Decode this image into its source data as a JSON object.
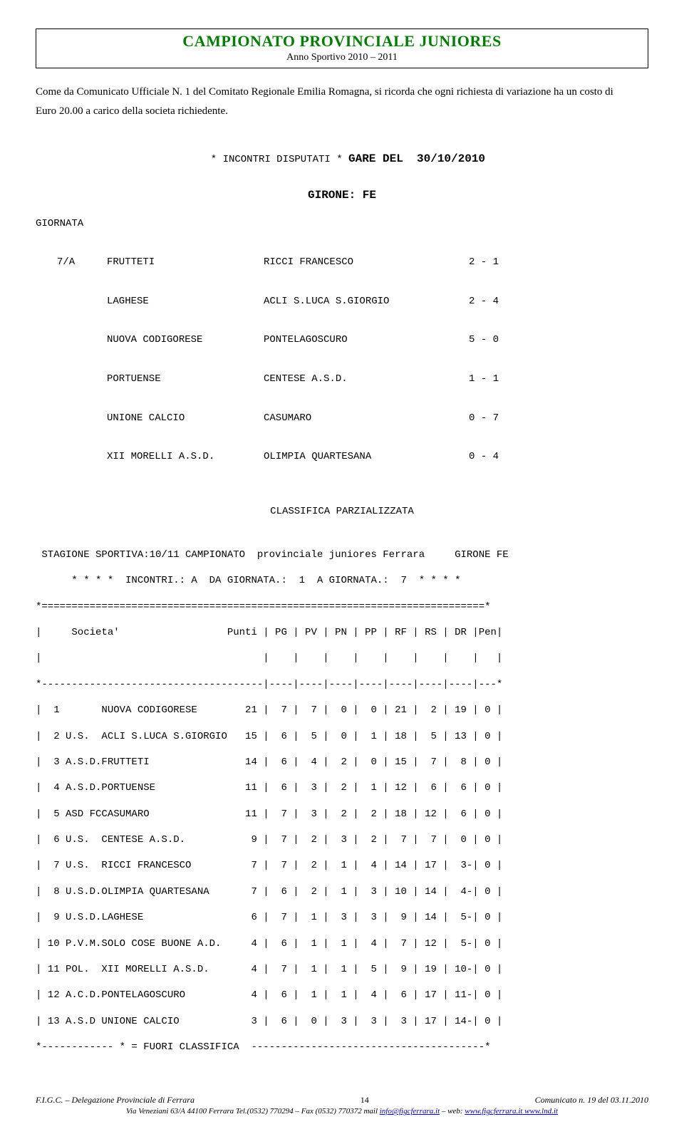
{
  "header": {
    "title": "CAMPIONATO PROVINCIALE JUNIORES",
    "subtitle": "Anno Sportivo 2010 – 2011"
  },
  "intro": {
    "line1": "Come da Comunicato Ufficiale N. 1 del Comitato Regionale Emilia Romagna, si ricorda che ogni richiesta di variazione ha un costo di",
    "line2": "Euro 20.00 a carico della societa richiedente."
  },
  "gare": {
    "prefix": "* INCONTRI DISPUTATI * ",
    "label": "GARE DEL",
    "date": "  30/10/2010"
  },
  "girone": "GIRONE: FE",
  "giornata_label": "GIORNATA",
  "matches": [
    {
      "rnd": "7/A",
      "home": "FRUTTETI",
      "away": "RICCI FRANCESCO",
      "score": "2 - 1"
    },
    {
      "rnd": "",
      "home": "LAGHESE",
      "away": "ACLI S.LUCA S.GIORGIO",
      "score": "2 - 4"
    },
    {
      "rnd": "",
      "home": "NUOVA CODIGORESE",
      "away": "PONTELAGOSCURO",
      "score": "5 - 0"
    },
    {
      "rnd": "",
      "home": "PORTUENSE",
      "away": "CENTESE A.S.D.",
      "score": "1 - 1"
    },
    {
      "rnd": "",
      "home": "UNIONE CALCIO",
      "away": "CASUMARO",
      "score": "0 - 7"
    },
    {
      "rnd": "",
      "home": "XII MORELLI A.S.D.",
      "away": "OLIMPIA QUARTESANA",
      "score": "0 - 4"
    }
  ],
  "classifica_title": "CLASSIFICA PARZIALIZZATA",
  "standings": {
    "line1": " STAGIONE SPORTIVA:10/11 CAMPIONATO  provinciale juniores Ferrara     GIRONE FE",
    "line2": "      * * * *  INCONTRI.: A  DA GIORNATA.:  1  A GIORNATA.:  7  * * * *",
    "sep_eq": "*==========================================================================*",
    "header": "|     Societa'                  Punti | PG | PV | PN | PP | RF | RS | DR |Pen|",
    "blank": "|                                     |    |    |    |    |    |    |    |   |",
    "sep_da": "*-------------------------------------|----|----|----|----|----|----|----|---*",
    "rows": [
      "|  1       NUOVA CODIGORESE        21 |  7 |  7 |  0 |  0 | 21 |  2 | 19 | 0 |",
      "|  2 U.S.  ACLI S.LUCA S.GIORGIO   15 |  6 |  5 |  0 |  1 | 18 |  5 | 13 | 0 |",
      "|  3 A.S.D.FRUTTETI                14 |  6 |  4 |  2 |  0 | 15 |  7 |  8 | 0 |",
      "|  4 A.S.D.PORTUENSE               11 |  6 |  3 |  2 |  1 | 12 |  6 |  6 | 0 |",
      "|  5 ASD FCCASUMARO                11 |  7 |  3 |  2 |  2 | 18 | 12 |  6 | 0 |",
      "|  6 U.S.  CENTESE A.S.D.           9 |  7 |  2 |  3 |  2 |  7 |  7 |  0 | 0 |",
      "|  7 U.S.  RICCI FRANCESCO          7 |  7 |  2 |  1 |  4 | 14 | 17 |  3-| 0 |",
      "|  8 U.S.D.OLIMPIA QUARTESANA       7 |  6 |  2 |  1 |  3 | 10 | 14 |  4-| 0 |",
      "|  9 U.S.D.LAGHESE                  6 |  7 |  1 |  3 |  3 |  9 | 14 |  5-| 0 |",
      "| 10 P.V.M.SOLO COSE BUONE A.D.     4 |  6 |  1 |  1 |  4 |  7 | 12 |  5-| 0 |",
      "| 11 POL.  XII MORELLI A.S.D.       4 |  7 |  1 |  1 |  5 |  9 | 19 | 10-| 0 |",
      "| 12 A.C.D.PONTELAGOSCURO           4 |  6 |  1 |  1 |  4 |  6 | 17 | 11-| 0 |",
      "| 13 A.S.D UNIONE CALCIO            3 |  6 |  0 |  3 |  3 |  3 | 17 | 14-| 0 |"
    ],
    "footer": "*------------ * = FUORI CLASSIFICA  ---------------------------------------*"
  },
  "footer": {
    "left": "F.I.G.C. – Delegazione Provinciale di Ferrara",
    "page": "14",
    "right": "Comunicato n. 19 del 03.11.2010",
    "addr_prefix": "Via Veneziani 63/A   44100 Ferrara Tel.(0532) 770294 – Fax (0532) 770372 mail ",
    "mail": "info@figcferrara.it",
    "web_prefix": " – web: ",
    "web1": "www.figcferrara.it",
    "web2": " www.lnd.it"
  }
}
